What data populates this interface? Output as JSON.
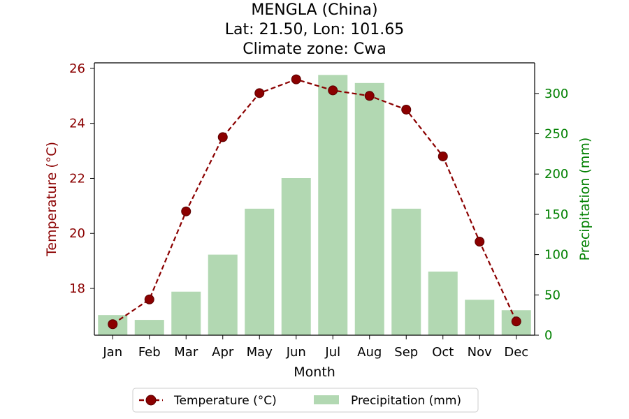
{
  "chart_data": {
    "type": "bar+line",
    "title": [
      "MENGLA (China)",
      "Lat: 21.50, Lon: 101.65",
      "Climate zone: Cwa"
    ],
    "xlabel": "Month",
    "categories": [
      "Jan",
      "Feb",
      "Mar",
      "Apr",
      "May",
      "Jun",
      "Jul",
      "Aug",
      "Sep",
      "Oct",
      "Nov",
      "Dec"
    ],
    "temperature": {
      "name": "Temperature (°C)",
      "axis_label": "Temperature (°C)",
      "values": [
        16.7,
        17.6,
        20.8,
        23.5,
        25.1,
        25.6,
        25.2,
        25.0,
        24.5,
        22.8,
        19.7,
        16.8
      ],
      "ylim": [
        16.3,
        26.2
      ],
      "ticks": [
        18,
        20,
        22,
        24,
        26
      ],
      "color": "#8b0000"
    },
    "precipitation": {
      "name": "Precipitation (mm)",
      "axis_label": "Precipitation (mm)",
      "values": [
        25,
        19,
        54,
        100,
        157,
        195,
        323,
        313,
        157,
        79,
        44,
        31
      ],
      "ylim": [
        0,
        338
      ],
      "ticks": [
        0,
        50,
        100,
        150,
        200,
        250,
        300
      ],
      "color": "#b2d8b2",
      "axis_color": "#008000"
    },
    "legend": {
      "position": "bottom-center"
    },
    "grid": false
  }
}
